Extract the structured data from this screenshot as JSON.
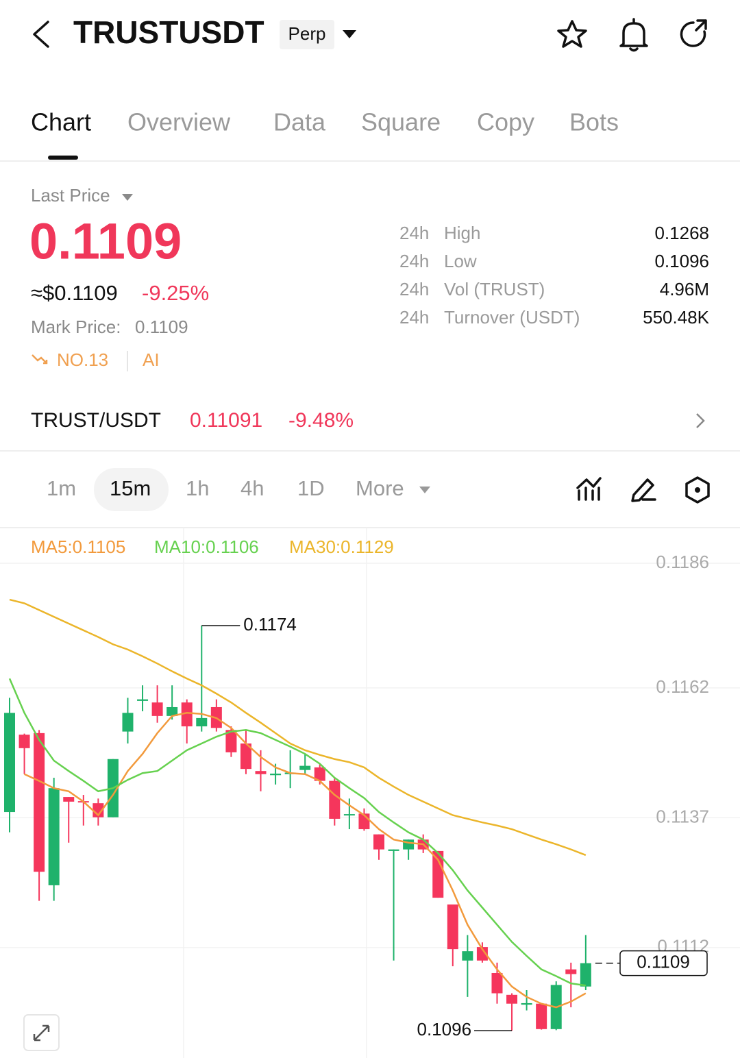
{
  "header": {
    "symbol": "TRUSTUSDT",
    "badge": "Perp"
  },
  "tabs": [
    "Chart",
    "Overview",
    "Data",
    "Square",
    "Copy",
    "Bots"
  ],
  "price": {
    "label": "Last Price",
    "last": "0.1109",
    "usd": "≈$0.1109",
    "change": "-9.25%",
    "mark_label": "Mark Price:",
    "mark": "0.1109",
    "rank": "NO.13",
    "ai": "AI",
    "stats": [
      [
        "24h",
        "High",
        "0.1268"
      ],
      [
        "24h",
        "Low",
        "0.1096"
      ],
      [
        "24h",
        "Vol (TRUST)",
        "4.96M"
      ],
      [
        "24h",
        "Turnover (USDT)",
        "550.48K"
      ]
    ]
  },
  "spot": {
    "pair": "TRUST/USDT",
    "price": "0.11091",
    "change": "-9.48%"
  },
  "intervals": [
    "1m",
    "15m",
    "1h",
    "4h",
    "1D",
    "More"
  ],
  "chart_data": {
    "type": "candlestick",
    "up_color": "#1fb26b",
    "down_color": "#f5365c",
    "open": [
      0.11381,
      0.1153,
      0.11533,
      0.1124,
      0.1141,
      0.11402,
      0.11398,
      0.11371,
      0.11536,
      0.11595,
      0.11592,
      0.11566,
      0.11592,
      0.11546,
      0.11583,
      0.11539,
      0.11513,
      0.1146,
      0.11452,
      0.11454,
      0.11462,
      0.11467,
      0.11441,
      0.11375,
      0.11378,
      0.11338,
      0.11306,
      0.11309,
      0.11328,
      0.11306,
      0.11203,
      0.11095,
      0.11121,
      0.11071,
      0.11029,
      0.1101,
      0.11012,
      0.10963,
      0.11078,
      0.11045
    ],
    "high": [
      0.11601,
      0.11532,
      0.11539,
      0.11447,
      0.1141,
      0.11414,
      0.11407,
      0.11483,
      0.11601,
      0.11625,
      0.11625,
      0.11625,
      0.11598,
      0.1174,
      0.11598,
      0.11546,
      0.11539,
      0.115,
      0.11474,
      0.115,
      0.11493,
      0.11474,
      0.11447,
      0.11407,
      0.11388,
      0.11338,
      0.11309,
      0.11328,
      0.11338,
      0.11306,
      0.11203,
      0.11144,
      0.1113,
      0.11091,
      0.11032,
      0.11038,
      0.11012,
      0.11055,
      0.11091,
      0.11144
    ],
    "low": [
      0.11342,
      0.11454,
      0.1121,
      0.1121,
      0.11322,
      0.11355,
      0.11355,
      0.11371,
      0.11513,
      0.11575,
      0.11553,
      0.11559,
      0.11513,
      0.11536,
      0.11536,
      0.11487,
      0.11454,
      0.11421,
      0.11434,
      0.11427,
      0.11454,
      0.11434,
      0.11355,
      0.11348,
      0.11345,
      0.11289,
      0.11095,
      0.11289,
      0.11302,
      0.11216,
      0.11084,
      0.11025,
      0.11091,
      0.11012,
      0.1096,
      0.10999,
      0.10962,
      0.10961,
      0.11005,
      0.11038
    ],
    "close": [
      0.11572,
      0.11504,
      0.11266,
      0.11427,
      0.11401,
      0.114,
      0.11371,
      0.11483,
      0.11572,
      0.11598,
      0.11566,
      0.11583,
      0.11546,
      0.11562,
      0.11543,
      0.11496,
      0.11464,
      0.11454,
      0.11455,
      0.11457,
      0.1147,
      0.11441,
      0.11368,
      0.11377,
      0.11348,
      0.11309,
      0.11309,
      0.11328,
      0.11309,
      0.11216,
      0.11117,
      0.11113,
      0.11095,
      0.11032,
      0.11012,
      0.11013,
      0.10963,
      0.11048,
      0.11069,
      0.1109
    ],
    "series": [
      {
        "name": "MA5:0.1105",
        "color": "#f29a3c",
        "values": [
          null,
          0.11454,
          0.11441,
          0.11427,
          0.11421,
          0.11401,
          0.11375,
          0.11414,
          0.1146,
          0.11493,
          0.11533,
          0.11566,
          0.11572,
          0.1157,
          0.11562,
          0.11543,
          0.11513,
          0.11487,
          0.11467,
          0.11456,
          0.11454,
          0.11441,
          0.11414,
          0.11394,
          0.11375,
          0.11348,
          0.11328,
          0.11322,
          0.11319,
          0.11289,
          0.1123,
          0.11164,
          0.11117,
          0.11078,
          0.11045,
          0.11025,
          0.11012,
          0.11005,
          0.11016,
          0.11032
        ]
      },
      {
        "name": "MA10:0.1106",
        "color": "#66d14f",
        "values": [
          0.11638,
          0.11572,
          0.1152,
          0.1148,
          0.1146,
          0.11441,
          0.11421,
          0.11427,
          0.11443,
          0.11456,
          0.1146,
          0.1148,
          0.115,
          0.11513,
          0.11526,
          0.11536,
          0.11539,
          0.11533,
          0.1152,
          0.11507,
          0.11493,
          0.11474,
          0.11447,
          0.11427,
          0.11408,
          0.11381,
          0.11361,
          0.11342,
          0.11328,
          0.11302,
          0.11269,
          0.1123,
          0.11197,
          0.11164,
          0.11131,
          0.11104,
          0.11078,
          0.11065,
          0.11051,
          0.11047
        ]
      },
      {
        "name": "MA30:0.1129",
        "color": "#ebb52a",
        "values": [
          0.1179,
          0.11783,
          0.1177,
          0.11757,
          0.11744,
          0.11731,
          0.11718,
          0.11704,
          0.11694,
          0.11681,
          0.11667,
          0.11652,
          0.11638,
          0.11625,
          0.11609,
          0.11592,
          0.11572,
          0.11553,
          0.11533,
          0.11513,
          0.115,
          0.11491,
          0.11483,
          0.11477,
          0.11467,
          0.11447,
          0.1143,
          0.11414,
          0.11401,
          0.11388,
          0.11375,
          0.11368,
          0.11361,
          0.11355,
          0.11348,
          0.11338,
          0.11328,
          0.11319,
          0.11309,
          0.11298
        ]
      }
    ],
    "ylim": [
      0.1091,
      0.1193
    ],
    "yticks": [
      0.1186,
      0.1162,
      0.1137,
      0.1112
    ],
    "grid": true,
    "high_label": 0.1174,
    "low_label": 0.1096,
    "last_label": 0.1109
  }
}
